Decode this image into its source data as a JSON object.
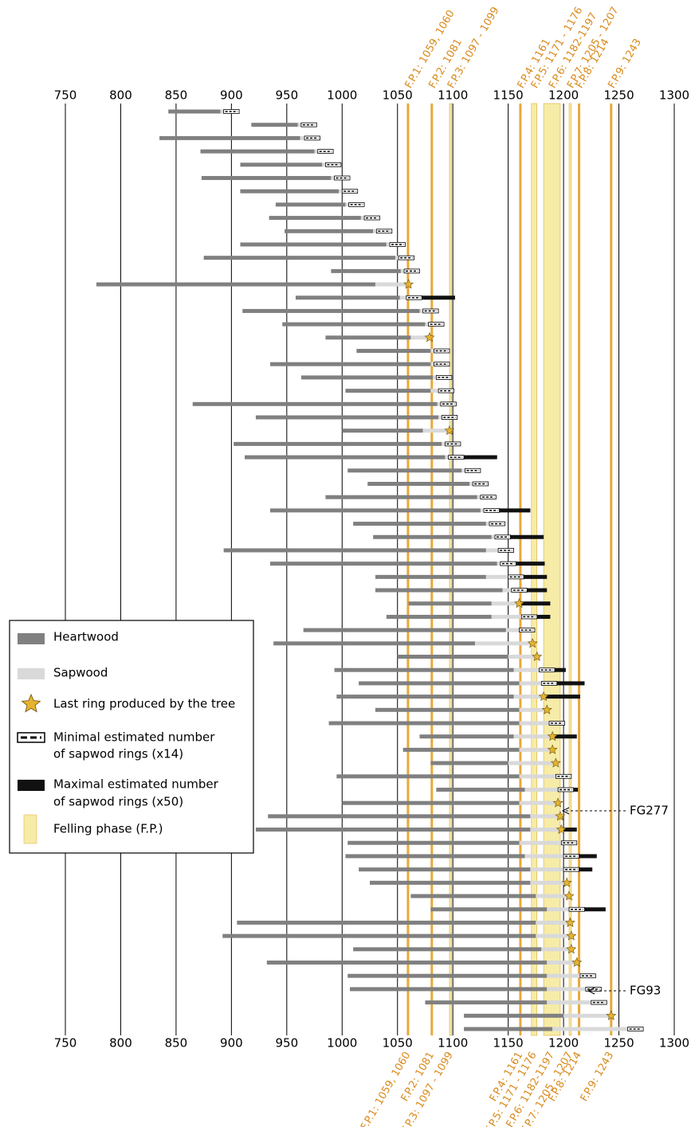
{
  "chart_data": {
    "type": "dendro",
    "xlim": [
      750,
      1300
    ],
    "xticks": [
      750,
      800,
      850,
      900,
      950,
      1000,
      1050,
      1100,
      1150,
      1200,
      1250,
      1300
    ],
    "grid": true,
    "colors": {
      "heartwood": "#808080",
      "sapwood": "#d9d9d9",
      "star": "#e6b32e",
      "max": "#111111",
      "phase_line": "#e8a83a",
      "phase_band": "#f6eca8",
      "phase_text": "#d98a1c"
    },
    "felling_phases": [
      {
        "label": "F.P.1: 1059, 1060",
        "start": 1059,
        "end": 1060
      },
      {
        "label": "F.P.2: 1081",
        "start": 1081,
        "end": 1081
      },
      {
        "label": "F.P.3: 1097 - 1099",
        "start": 1097,
        "end": 1099
      },
      {
        "label": "F.P.4: 1161",
        "start": 1161,
        "end": 1161
      },
      {
        "label": "F.P.5: 1171 - 1176",
        "start": 1171,
        "end": 1176
      },
      {
        "label": "F.P.6: 1182-1197",
        "start": 1182,
        "end": 1197
      },
      {
        "label": "F.P.7: 1205 - 1207",
        "start": 1205,
        "end": 1207
      },
      {
        "label": "F.P.8: 1214",
        "start": 1214,
        "end": 1214
      },
      {
        "label": "F.P.9: 1243",
        "start": 1243,
        "end": 1243
      }
    ],
    "legend": [
      "Heartwood",
      "Sapwood",
      "Last ring produced by the tree",
      "Minimal estimated number",
      "of sapwod rings (x14)",
      "Maximal estimated number",
      "of sapwod rings (x50)",
      "Felling phase (F.P.)"
    ],
    "annotations": [
      "FG277",
      "FG93"
    ],
    "rows": [
      [
        843,
        890,
        893,
        0,
        null
      ],
      [
        918,
        960,
        963,
        0,
        null
      ],
      [
        835,
        962,
        966,
        0,
        null
      ],
      [
        872,
        975,
        978,
        0,
        null
      ],
      [
        908,
        982,
        985,
        0,
        null
      ],
      [
        873,
        990,
        993,
        0,
        null
      ],
      [
        908,
        997,
        1000,
        0,
        null
      ],
      [
        940,
        1003,
        1006,
        0,
        null
      ],
      [
        934,
        1017,
        1020,
        0,
        null
      ],
      [
        948,
        1028,
        1031,
        0,
        null
      ],
      [
        908,
        1040,
        1043,
        0,
        null
      ],
      [
        875,
        1048,
        1051,
        0,
        null
      ],
      [
        990,
        1053,
        1056,
        0,
        null
      ],
      [
        778,
        1030,
        1060,
        1,
        null
      ],
      [
        958,
        1052,
        1058,
        0,
        1102
      ],
      [
        910,
        1070,
        1073,
        0,
        null
      ],
      [
        946,
        1075,
        1078,
        0,
        null
      ],
      [
        985,
        1062,
        1079,
        1,
        null
      ],
      [
        1013,
        1080,
        1083,
        0,
        null
      ],
      [
        935,
        1080,
        1083,
        0,
        null
      ],
      [
        963,
        1082,
        1085,
        0,
        null
      ],
      [
        1003,
        1080,
        1087,
        0,
        null
      ],
      [
        865,
        1086,
        1089,
        0,
        null
      ],
      [
        922,
        1087,
        1090,
        0,
        null
      ],
      [
        1000,
        1073,
        1097,
        1,
        null
      ],
      [
        902,
        1090,
        1093,
        0,
        null
      ],
      [
        912,
        1093,
        1096,
        0,
        1140
      ],
      [
        1005,
        1108,
        1111,
        0,
        null
      ],
      [
        1023,
        1115,
        1118,
        0,
        null
      ],
      [
        985,
        1122,
        1125,
        0,
        null
      ],
      [
        935,
        1125,
        1128,
        0,
        1170
      ],
      [
        1010,
        1130,
        1133,
        0,
        null
      ],
      [
        1028,
        1135,
        1138,
        0,
        1182
      ],
      [
        893,
        1130,
        1141,
        0,
        null
      ],
      [
        935,
        1140,
        1143,
        0,
        1183
      ],
      [
        1030,
        1130,
        1150,
        0,
        1185
      ],
      [
        1030,
        1145,
        1153,
        0,
        1185
      ],
      [
        1060,
        1135,
        1160,
        1,
        1188
      ],
      [
        1040,
        1135,
        1162,
        0,
        1188
      ],
      [
        965,
        1148,
        1160,
        0,
        null
      ],
      [
        938,
        1120,
        1172,
        1,
        null
      ],
      [
        1050,
        1150,
        1176,
        1,
        null
      ],
      [
        993,
        1155,
        1178,
        0,
        1202
      ],
      [
        1015,
        1160,
        1180,
        0,
        1219
      ],
      [
        995,
        1155,
        1182,
        1,
        1215
      ],
      [
        1030,
        1160,
        1185,
        1,
        null
      ],
      [
        988,
        1160,
        1187,
        0,
        1200
      ],
      [
        1070,
        1155,
        1190,
        1,
        1212
      ],
      [
        1055,
        1160,
        1190,
        1,
        null
      ],
      [
        1080,
        1150,
        1193,
        1,
        null
      ],
      [
        995,
        1160,
        1193,
        0,
        1205
      ],
      [
        1085,
        1165,
        1195,
        0,
        1213
      ],
      [
        1000,
        1160,
        1195,
        1,
        null
      ],
      [
        933,
        1170,
        1197,
        1,
        null
      ],
      [
        922,
        1170,
        1198,
        1,
        1212
      ],
      [
        1005,
        1160,
        1198,
        0,
        1212
      ],
      [
        1003,
        1165,
        1200,
        0,
        1230
      ],
      [
        1015,
        1170,
        1200,
        0,
        1226
      ],
      [
        1025,
        1170,
        1203,
        1,
        null
      ],
      [
        1062,
        1175,
        1205,
        1,
        null
      ],
      [
        1080,
        1185,
        1205,
        0,
        1238
      ],
      [
        905,
        1175,
        1206,
        1,
        null
      ],
      [
        892,
        1175,
        1207,
        1,
        null
      ],
      [
        1010,
        1180,
        1207,
        1,
        null
      ],
      [
        932,
        1185,
        1212,
        1,
        null
      ],
      [
        1005,
        1185,
        1215,
        0,
        null
      ],
      [
        1007,
        1185,
        1220,
        0,
        null
      ],
      [
        1075,
        1185,
        1225,
        0,
        null
      ],
      [
        1110,
        1200,
        1243,
        1,
        null
      ],
      [
        1110,
        1190,
        1258,
        0,
        null
      ]
    ]
  }
}
